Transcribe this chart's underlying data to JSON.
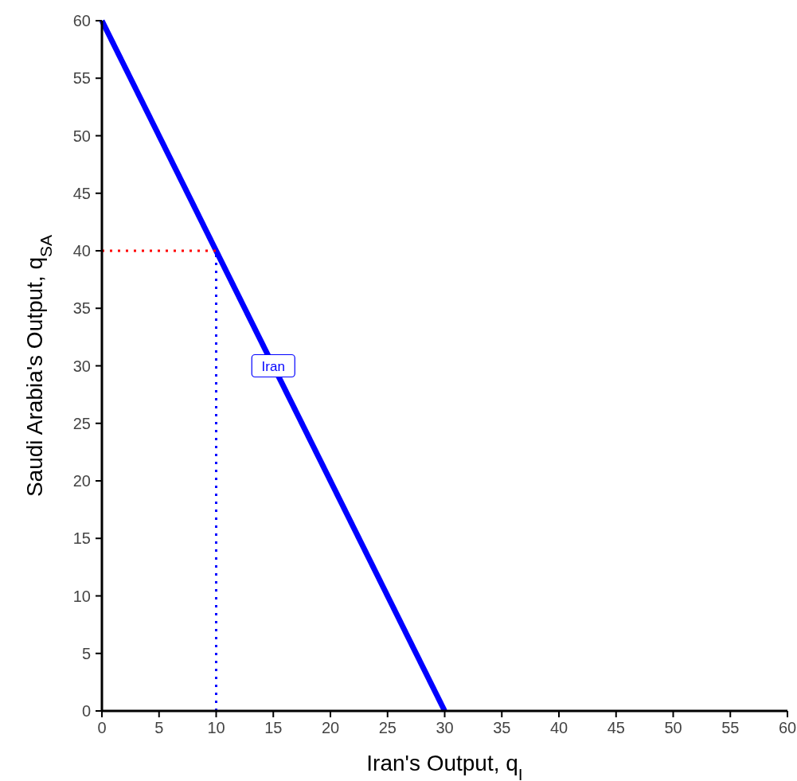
{
  "chart_data": {
    "type": "line",
    "xlabel": "Iran's Output, q$_{I}$",
    "ylabel": "Saudi Arabia's Output, q$_{SA}$",
    "xlim": [
      0,
      60
    ],
    "ylim": [
      0,
      60
    ],
    "xticks": [
      0,
      5,
      10,
      15,
      20,
      25,
      30,
      35,
      40,
      45,
      50,
      55,
      60
    ],
    "yticks": [
      0,
      5,
      10,
      15,
      20,
      25,
      30,
      35,
      40,
      45,
      50,
      55,
      60
    ],
    "grid": false,
    "marker": "none",
    "series": [
      {
        "name": "Iran",
        "color": "#0000ff",
        "x": [
          0,
          30
        ],
        "values": [
          60,
          0
        ],
        "line_style": "solid"
      },
      {
        "color": "#ff0000",
        "x": [
          0,
          10
        ],
        "values": [
          40,
          40
        ],
        "line_style": "dotted"
      },
      {
        "color": "#0000ff",
        "x": [
          10,
          10
        ],
        "values": [
          0,
          40
        ],
        "line_style": "dotted"
      }
    ]
  }
}
